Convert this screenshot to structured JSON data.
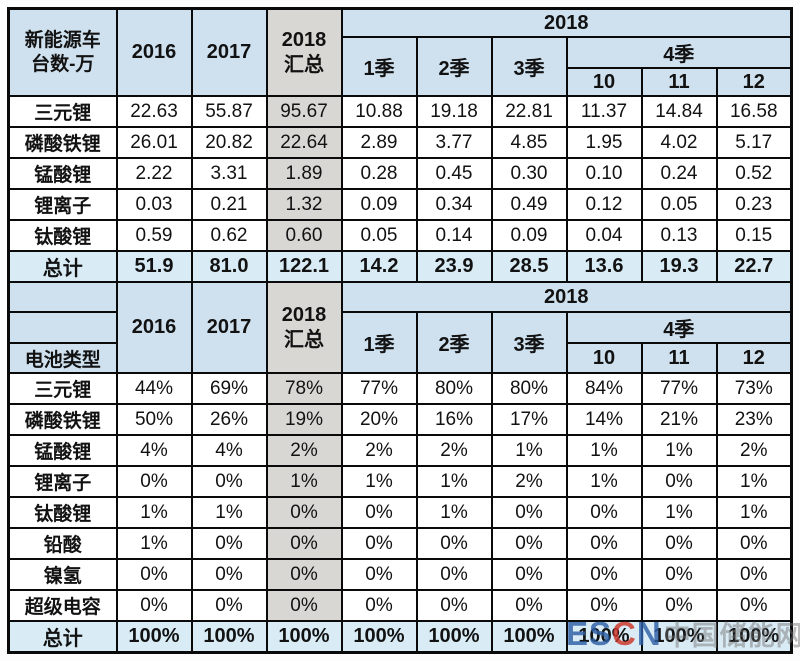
{
  "chart_data": [
    {
      "type": "table",
      "title": "新能源车台数-万",
      "corner_label": "新能源车\n台数-万",
      "year_group_label": "2018",
      "quarter4_label": "4季",
      "columns": [
        "2016",
        "2017",
        "2018\n汇总",
        "1季",
        "2季",
        "3季",
        "10",
        "11",
        "12"
      ],
      "rows": [
        {
          "label": "三元锂",
          "values": [
            "22.63",
            "55.87",
            "95.67",
            "10.88",
            "19.18",
            "22.81",
            "11.37",
            "14.84",
            "16.58"
          ]
        },
        {
          "label": "磷酸铁锂",
          "values": [
            "26.01",
            "20.82",
            "22.64",
            "2.89",
            "3.77",
            "4.85",
            "1.95",
            "4.02",
            "5.17"
          ]
        },
        {
          "label": "锰酸锂",
          "values": [
            "2.22",
            "3.31",
            "1.89",
            "0.28",
            "0.45",
            "0.30",
            "0.10",
            "0.24",
            "0.52"
          ]
        },
        {
          "label": "锂离子",
          "values": [
            "0.03",
            "0.21",
            "1.32",
            "0.09",
            "0.34",
            "0.49",
            "0.12",
            "0.05",
            "0.23"
          ]
        },
        {
          "label": "钛酸锂",
          "values": [
            "0.59",
            "0.62",
            "0.60",
            "0.05",
            "0.14",
            "0.09",
            "0.04",
            "0.13",
            "0.15"
          ]
        },
        {
          "label": "总计",
          "total": true,
          "values": [
            "51.9",
            "81.0",
            "122.1",
            "14.2",
            "23.9",
            "28.5",
            "13.6",
            "19.3",
            "22.7"
          ]
        }
      ]
    },
    {
      "type": "table",
      "title": "电池类型",
      "corner_label": "电池类型",
      "year_group_label": "2018",
      "quarter4_label": "4季",
      "columns": [
        "2016",
        "2017",
        "2018\n汇总",
        "1季",
        "2季",
        "3季",
        "10",
        "11",
        "12"
      ],
      "rows": [
        {
          "label": "三元锂",
          "values": [
            "44%",
            "69%",
            "78%",
            "77%",
            "80%",
            "80%",
            "84%",
            "77%",
            "73%"
          ]
        },
        {
          "label": "磷酸铁锂",
          "values": [
            "50%",
            "26%",
            "19%",
            "20%",
            "16%",
            "17%",
            "14%",
            "21%",
            "23%"
          ]
        },
        {
          "label": "锰酸锂",
          "values": [
            "4%",
            "4%",
            "2%",
            "2%",
            "2%",
            "1%",
            "1%",
            "1%",
            "2%"
          ]
        },
        {
          "label": "锂离子",
          "values": [
            "0%",
            "0%",
            "1%",
            "1%",
            "1%",
            "2%",
            "1%",
            "0%",
            "1%"
          ]
        },
        {
          "label": "钛酸锂",
          "values": [
            "1%",
            "1%",
            "0%",
            "0%",
            "1%",
            "0%",
            "0%",
            "1%",
            "1%"
          ]
        },
        {
          "label": "铅酸",
          "values": [
            "1%",
            "0%",
            "0%",
            "0%",
            "0%",
            "0%",
            "0%",
            "0%",
            "0%"
          ]
        },
        {
          "label": "镍氢",
          "values": [
            "0%",
            "0%",
            "0%",
            "0%",
            "0%",
            "0%",
            "0%",
            "0%",
            "0%"
          ]
        },
        {
          "label": "超级电容",
          "values": [
            "0%",
            "0%",
            "0%",
            "0%",
            "0%",
            "0%",
            "0%",
            "0%",
            "0%"
          ]
        },
        {
          "label": "总计",
          "total": true,
          "values": [
            "100%",
            "100%",
            "100%",
            "100%",
            "100%",
            "100%",
            "100%",
            "100%",
            "100%"
          ]
        }
      ]
    }
  ],
  "colors": {
    "header_blue": "#cfe1ef",
    "summary_gray": "#d8d7d3",
    "total_row_blue": "#d9ecf6",
    "border": "#0a0a0a"
  },
  "watermark": {
    "logo_part1": "ES",
    "logo_part2": "C",
    "logo_part3": "N",
    "site_name": "中国储能网"
  }
}
